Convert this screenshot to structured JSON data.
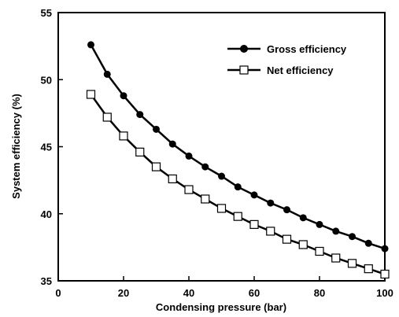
{
  "chart_data": {
    "type": "line",
    "title": "",
    "xlabel": "Condensing pressure (bar)",
    "ylabel": "System efficiency (%)",
    "xlim": [
      0,
      100
    ],
    "ylim": [
      35,
      55
    ],
    "xticks": [
      0,
      20,
      40,
      60,
      80,
      100
    ],
    "yticks": [
      35,
      40,
      45,
      50,
      55
    ],
    "grid": false,
    "legend_position": "top-right",
    "x": [
      10,
      15,
      20,
      25,
      30,
      35,
      40,
      45,
      50,
      55,
      60,
      65,
      70,
      75,
      80,
      85,
      90,
      95,
      100
    ],
    "series": [
      {
        "name": "Gross efficiency",
        "marker": "filled-circle",
        "color": "#000000",
        "values": [
          52.6,
          50.4,
          48.8,
          47.4,
          46.3,
          45.2,
          44.3,
          43.5,
          42.8,
          42.0,
          41.4,
          40.8,
          40.3,
          39.7,
          39.2,
          38.7,
          38.3,
          37.8,
          37.4
        ]
      },
      {
        "name": "Net efficiency",
        "marker": "open-square",
        "color": "#000000",
        "values": [
          48.9,
          47.2,
          45.8,
          44.6,
          43.5,
          42.6,
          41.8,
          41.1,
          40.4,
          39.8,
          39.2,
          38.7,
          38.1,
          37.7,
          37.2,
          36.7,
          36.3,
          35.9,
          35.5
        ]
      }
    ]
  }
}
